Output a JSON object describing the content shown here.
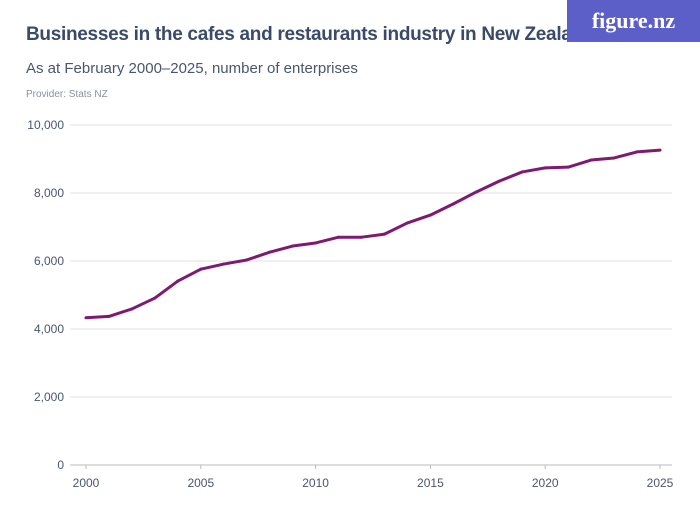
{
  "header": {
    "title": "Businesses in the cafes and restaurants industry in New Zealand",
    "subtitle": "As at February 2000–2025, number of enterprises",
    "provider": "Provider: Stats NZ",
    "logo": "figure.nz"
  },
  "colors": {
    "line": "#7f1a72",
    "grid": "#e2e2e2",
    "logo_bg": "#5b5fc7"
  },
  "chart_data": {
    "type": "line",
    "title": "Businesses in the cafes and restaurants industry in New Zealand",
    "subtitle": "As at February 2000–2025, number of enterprises",
    "x": [
      2000,
      2001,
      2002,
      2003,
      2004,
      2005,
      2006,
      2007,
      2008,
      2009,
      2010,
      2011,
      2012,
      2013,
      2014,
      2015,
      2016,
      2017,
      2018,
      2019,
      2020,
      2021,
      2022,
      2023,
      2024,
      2025
    ],
    "values": [
      4330,
      4370,
      4590,
      4910,
      5410,
      5760,
      5910,
      6030,
      6260,
      6440,
      6530,
      6700,
      6700,
      6790,
      7120,
      7350,
      7680,
      8030,
      8350,
      8620,
      8740,
      8760,
      8970,
      9030,
      9210,
      9260
    ],
    "xlim": [
      2000,
      2025
    ],
    "ylim": [
      0,
      10000
    ],
    "xticks": [
      "2000",
      "2005",
      "2010",
      "2015",
      "2020",
      "2025"
    ],
    "yticks": [
      "0",
      "2,000",
      "4,000",
      "6,000",
      "8,000",
      "10,000"
    ],
    "grid": true
  }
}
